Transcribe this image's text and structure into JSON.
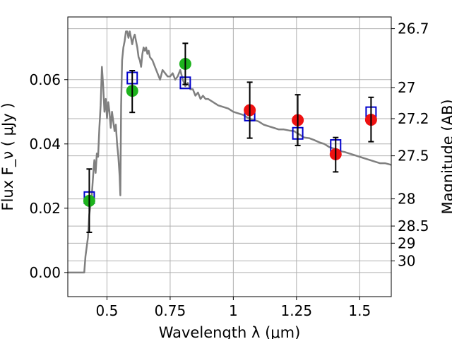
{
  "chart_data": {
    "type": "scatter",
    "xlabel": "Wavelength  λ (μm)",
    "ylabel": "Flux  F_ν  ( μJy )",
    "ylabel_right": "Magnitude (AB)",
    "xlim": [
      0.345,
      1.625
    ],
    "ylim": [
      -0.0075,
      0.0795
    ],
    "grid": true,
    "x_ticks": [
      {
        "value": 0.5,
        "label": "0.5"
      },
      {
        "value": 0.75,
        "label": "0.75"
      },
      {
        "value": 1.0,
        "label": "1"
      },
      {
        "value": 1.25,
        "label": "1.25"
      },
      {
        "value": 1.5,
        "label": "1.5"
      }
    ],
    "y_ticks": [
      {
        "value": 0.0,
        "label": "0.00"
      },
      {
        "value": 0.02,
        "label": "0.02"
      },
      {
        "value": 0.04,
        "label": "0.04"
      },
      {
        "value": 0.06,
        "label": "0.06"
      }
    ],
    "right_ticks": [
      {
        "mag": 26.7,
        "label": "26.7"
      },
      {
        "mag": 27,
        "label": "27"
      },
      {
        "mag": 27.2,
        "label": "27.2"
      },
      {
        "mag": 27.5,
        "label": "27.5"
      },
      {
        "mag": 28,
        "label": "28"
      },
      {
        "mag": 28.5,
        "label": "28.5"
      },
      {
        "mag": 29,
        "label": "29"
      },
      {
        "mag": 30,
        "label": "30"
      }
    ],
    "series": [
      {
        "kind": "line",
        "color": "#808080",
        "points": [
          [
            0.345,
            0.0
          ],
          [
            0.41,
            0.0
          ],
          [
            0.415,
            0.005
          ],
          [
            0.425,
            0.011
          ],
          [
            0.43,
            0.018
          ],
          [
            0.44,
            0.024
          ],
          [
            0.445,
            0.03
          ],
          [
            0.45,
            0.035
          ],
          [
            0.455,
            0.031
          ],
          [
            0.46,
            0.037
          ],
          [
            0.465,
            0.036
          ],
          [
            0.47,
            0.045
          ],
          [
            0.475,
            0.052
          ],
          [
            0.48,
            0.064
          ],
          [
            0.485,
            0.058
          ],
          [
            0.49,
            0.05
          ],
          [
            0.495,
            0.054
          ],
          [
            0.5,
            0.048
          ],
          [
            0.505,
            0.053
          ],
          [
            0.51,
            0.05
          ],
          [
            0.515,
            0.045
          ],
          [
            0.52,
            0.05
          ],
          [
            0.525,
            0.047
          ],
          [
            0.53,
            0.044
          ],
          [
            0.535,
            0.046
          ],
          [
            0.54,
            0.04
          ],
          [
            0.545,
            0.036
          ],
          [
            0.55,
            0.03
          ],
          [
            0.553,
            0.024
          ],
          [
            0.556,
            0.052
          ],
          [
            0.56,
            0.066
          ],
          [
            0.565,
            0.07
          ],
          [
            0.57,
            0.072
          ],
          [
            0.575,
            0.075
          ],
          [
            0.58,
            0.075
          ],
          [
            0.585,
            0.073
          ],
          [
            0.59,
            0.075
          ],
          [
            0.595,
            0.073
          ],
          [
            0.6,
            0.071
          ],
          [
            0.605,
            0.073
          ],
          [
            0.61,
            0.074
          ],
          [
            0.615,
            0.072
          ],
          [
            0.62,
            0.07
          ],
          [
            0.625,
            0.067
          ],
          [
            0.63,
            0.066
          ],
          [
            0.635,
            0.064
          ],
          [
            0.64,
            0.068
          ],
          [
            0.645,
            0.07
          ],
          [
            0.65,
            0.069
          ],
          [
            0.655,
            0.07
          ],
          [
            0.66,
            0.068
          ],
          [
            0.665,
            0.069
          ],
          [
            0.67,
            0.067
          ],
          [
            0.68,
            0.066
          ],
          [
            0.69,
            0.064
          ],
          [
            0.7,
            0.062
          ],
          [
            0.71,
            0.06
          ],
          [
            0.72,
            0.063
          ],
          [
            0.73,
            0.062
          ],
          [
            0.74,
            0.061
          ],
          [
            0.75,
            0.061
          ],
          [
            0.76,
            0.062
          ],
          [
            0.77,
            0.06
          ],
          [
            0.78,
            0.061
          ],
          [
            0.79,
            0.063
          ],
          [
            0.8,
            0.06
          ],
          [
            0.81,
            0.058
          ],
          [
            0.82,
            0.059
          ],
          [
            0.83,
            0.057
          ],
          [
            0.84,
            0.057
          ],
          [
            0.85,
            0.055
          ],
          [
            0.86,
            0.056
          ],
          [
            0.87,
            0.054
          ],
          [
            0.88,
            0.055
          ],
          [
            0.89,
            0.054
          ],
          [
            0.9,
            0.054
          ],
          [
            0.92,
            0.053
          ],
          [
            0.94,
            0.052
          ],
          [
            0.96,
            0.0515
          ],
          [
            0.98,
            0.051
          ],
          [
            1.0,
            0.05
          ],
          [
            1.02,
            0.0495
          ],
          [
            1.04,
            0.049
          ],
          [
            1.06,
            0.048
          ],
          [
            1.08,
            0.0475
          ],
          [
            1.1,
            0.047
          ],
          [
            1.12,
            0.046
          ],
          [
            1.14,
            0.0455
          ],
          [
            1.16,
            0.045
          ],
          [
            1.18,
            0.0445
          ],
          [
            1.2,
            0.0445
          ],
          [
            1.22,
            0.0442
          ],
          [
            1.24,
            0.044
          ],
          [
            1.26,
            0.043
          ],
          [
            1.28,
            0.042
          ],
          [
            1.3,
            0.0418
          ],
          [
            1.32,
            0.0412
          ],
          [
            1.34,
            0.0405
          ],
          [
            1.36,
            0.04
          ],
          [
            1.38,
            0.039
          ],
          [
            1.4,
            0.0385
          ],
          [
            1.42,
            0.0378
          ],
          [
            1.44,
            0.0375
          ],
          [
            1.46,
            0.037
          ],
          [
            1.48,
            0.0365
          ],
          [
            1.5,
            0.036
          ],
          [
            1.52,
            0.0355
          ],
          [
            1.54,
            0.035
          ],
          [
            1.56,
            0.0345
          ],
          [
            1.58,
            0.034
          ],
          [
            1.6,
            0.034
          ],
          [
            1.625,
            0.0335
          ]
        ]
      },
      {
        "kind": "squares",
        "color": "#0000cc",
        "points": [
          [
            0.43,
            0.0233
          ],
          [
            0.6,
            0.0605
          ],
          [
            0.81,
            0.059
          ],
          [
            1.065,
            0.049
          ],
          [
            1.255,
            0.0433
          ],
          [
            1.405,
            0.0395
          ],
          [
            1.545,
            0.0497
          ]
        ]
      },
      {
        "kind": "circles",
        "color": "#1db31d",
        "points": [
          [
            0.43,
            0.0223
          ],
          [
            0.6,
            0.0565
          ],
          [
            0.81,
            0.0649
          ]
        ]
      },
      {
        "kind": "circles",
        "color": "#ee1111",
        "points": [
          [
            1.065,
            0.0505
          ],
          [
            1.255,
            0.0474
          ],
          [
            1.405,
            0.0368
          ],
          [
            1.545,
            0.0475
          ]
        ]
      },
      {
        "kind": "errorbars",
        "color": "#000000",
        "points": [
          {
            "x": 0.43,
            "lo": 0.0125,
            "hi": 0.0322
          },
          {
            "x": 0.6,
            "lo": 0.0498,
            "hi": 0.0628
          },
          {
            "x": 0.81,
            "lo": 0.0585,
            "hi": 0.0713
          },
          {
            "x": 1.065,
            "lo": 0.0418,
            "hi": 0.0592
          },
          {
            "x": 1.255,
            "lo": 0.0395,
            "hi": 0.0553
          },
          {
            "x": 1.405,
            "lo": 0.0313,
            "hi": 0.042
          },
          {
            "x": 1.545,
            "lo": 0.0407,
            "hi": 0.0545
          }
        ]
      }
    ]
  }
}
